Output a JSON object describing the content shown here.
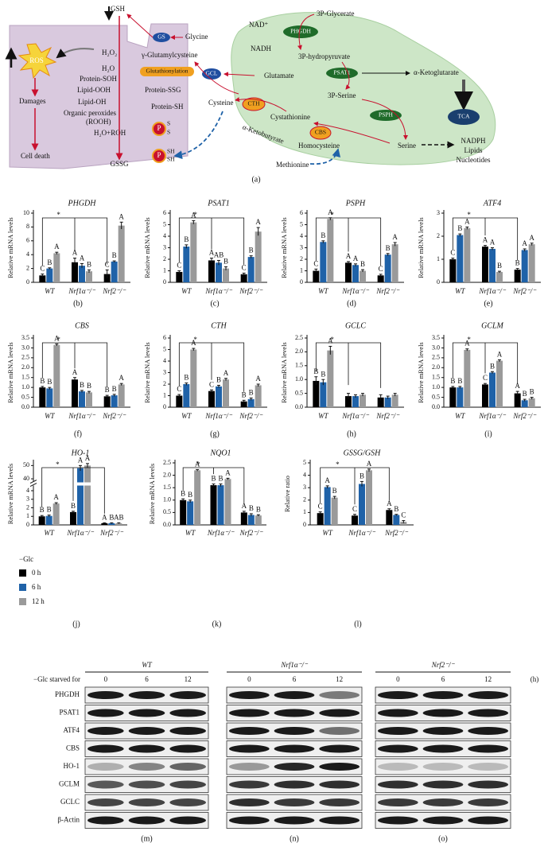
{
  "diagram": {
    "caption": "(a)",
    "gsh": "GSH",
    "gs": "GS",
    "glycine": "Glycine",
    "gglu": "γ-Glutamylcysteine",
    "h2o2": "H₂O₂",
    "h2o": "H₂O",
    "ros": "ROS",
    "glut": "Glutathionylation",
    "psoh": "Protein-SOH",
    "looh": "Lipid-OOH",
    "pssg": "Protein-SSG",
    "loh": "Lipid-OH",
    "psh": "Protein-SH",
    "orgp": "Organic peroxides",
    "rooh": "(ROOH)",
    "h2oroh": "H₂O+ROH",
    "damages": "Damages",
    "death": "Cell death",
    "gssg": "GSSG",
    "p": "P",
    "s": "S",
    "sh": "SH",
    "gcl": "GCL",
    "glutamate": "Glutamate",
    "cysteine": "Cysteine",
    "cth": "CTH",
    "cysta": "Cystathionine",
    "akb": "α-Ketobutyrate",
    "cbs": "CBS",
    "homocys": "Homocysteine",
    "methionine": "Methionine",
    "nad": "NAD⁺",
    "nadh": "NADH",
    "phgdh": "PHGDH",
    "p3g": "3P-Glycerate",
    "p3h": "3P-hydropyruvate",
    "psat1": "PSAT1",
    "p3s": "3P-Serine",
    "psph": "PSPH",
    "serine": "Serine",
    "akg": "α-Ketoglutarate",
    "tca": "TCA",
    "nadph": "NADPH",
    "lipids": "Lipids",
    "nucl": "Nucleotides"
  },
  "legend": {
    "title": "−Glc",
    "series": [
      {
        "name": "0 h",
        "color": "#000000"
      },
      {
        "name": "6 h",
        "color": "#1f62a8"
      },
      {
        "name": "12 h",
        "color": "#9a9a9a"
      }
    ]
  },
  "chart_data": [
    {
      "type": "bar",
      "title": "PHGDH",
      "ylabel": "Relative mRNA levels",
      "panel": "(b)",
      "annotation": "*",
      "categories": [
        "WT",
        "Nrf1α⁻/⁻",
        "Nrf2⁻/⁻"
      ],
      "ylim": [
        0,
        10
      ],
      "yticks": [
        0,
        2,
        4,
        6,
        8,
        10
      ],
      "series": [
        {
          "values": [
            1.0,
            2.9,
            1.2
          ],
          "errors": [
            0.2,
            0.6,
            0.6
          ],
          "letters": [
            "C",
            "A",
            "C"
          ]
        },
        {
          "values": [
            2.0,
            2.4,
            3.0
          ],
          "errors": [
            0.1,
            0.3,
            0.1
          ],
          "letters": [
            "B",
            "A",
            "B"
          ]
        },
        {
          "values": [
            4.2,
            1.6,
            8.2
          ],
          "errors": [
            0.15,
            0.2,
            0.5
          ],
          "letters": [
            "A",
            "B",
            "A"
          ]
        }
      ]
    },
    {
      "type": "bar",
      "title": "PSAT1",
      "ylabel": "Relative mRNA levels",
      "panel": "(c)",
      "annotation": "*",
      "categories": [
        "WT",
        "Nrf1α⁻/⁻",
        "Nrf2⁻/⁻"
      ],
      "ylim": [
        0,
        6
      ],
      "yticks": [
        0,
        1,
        2,
        3,
        4,
        5,
        6
      ],
      "series": [
        {
          "values": [
            0.9,
            1.9,
            0.7
          ],
          "errors": [
            0.1,
            0.2,
            0.1
          ],
          "letters": [
            "C",
            "A",
            "C"
          ]
        },
        {
          "values": [
            3.1,
            1.7,
            2.2
          ],
          "errors": [
            0.15,
            0.2,
            0.1
          ],
          "letters": [
            "B",
            "AB",
            "B"
          ]
        },
        {
          "values": [
            5.2,
            1.2,
            4.4
          ],
          "errors": [
            0.15,
            0.15,
            0.35
          ],
          "letters": [
            "A",
            "B",
            "A"
          ]
        }
      ]
    },
    {
      "type": "bar",
      "title": "PSPH",
      "ylabel": "Relative mRNA levels",
      "panel": "(d)",
      "annotation": "*",
      "categories": [
        "WT",
        "Nrf1α⁻/⁻",
        "Nrf2⁻/⁻"
      ],
      "ylim": [
        0,
        6
      ],
      "yticks": [
        0,
        1,
        2,
        3,
        4,
        5,
        6
      ],
      "series": [
        {
          "values": [
            1.0,
            1.7,
            0.6
          ],
          "errors": [
            0.15,
            0.1,
            0.1
          ],
          "letters": [
            "C",
            "A",
            "C"
          ]
        },
        {
          "values": [
            3.5,
            1.5,
            2.4
          ],
          "errors": [
            0.1,
            0.1,
            0.1
          ],
          "letters": [
            "B",
            "A",
            "B"
          ]
        },
        {
          "values": [
            5.5,
            1.0,
            3.3
          ],
          "errors": [
            0.1,
            0.1,
            0.15
          ],
          "letters": [
            "A",
            "B",
            "A"
          ]
        }
      ]
    },
    {
      "type": "bar",
      "title": "ATF4",
      "ylabel": "Relative mRNA levels",
      "panel": "(e)",
      "annotation": "*",
      "categories": [
        "WT",
        "Nrf1α⁻/⁻",
        "Nrf2⁻/⁻"
      ],
      "ylim": [
        0,
        3
      ],
      "yticks": [
        0,
        1,
        2,
        3
      ],
      "series": [
        {
          "values": [
            1.0,
            1.55,
            0.55
          ],
          "errors": [
            0.05,
            0.05,
            0.05
          ],
          "letters": [
            "C",
            "A",
            "B"
          ]
        },
        {
          "values": [
            2.05,
            1.45,
            1.4
          ],
          "errors": [
            0.05,
            0.05,
            0.05
          ],
          "letters": [
            "B",
            "A",
            "A"
          ]
        },
        {
          "values": [
            2.35,
            0.45,
            1.65
          ],
          "errors": [
            0.05,
            0.03,
            0.05
          ],
          "letters": [
            "A",
            "B",
            "A"
          ]
        }
      ]
    },
    {
      "type": "bar",
      "title": "CBS",
      "ylabel": "Relative mRNA levels",
      "panel": "(f)",
      "annotation": "*",
      "categories": [
        "WT",
        "Nrf1α⁻/⁻",
        "Nrf2⁻/⁻"
      ],
      "ylim": [
        0,
        3.5
      ],
      "yticks": [
        {
          "value": 0,
          "label": "0.0"
        },
        0.5,
        {
          "value": 1,
          "label": "1.0"
        },
        1.5,
        {
          "value": 2,
          "label": "2.0"
        },
        2.5,
        {
          "value": 3,
          "label": "3.0"
        },
        3.5
      ],
      "series": [
        {
          "values": [
            1.0,
            1.4,
            0.55
          ],
          "errors": [
            0.05,
            0.1,
            0.05
          ],
          "letters": [
            "B",
            "A",
            "B"
          ]
        },
        {
          "values": [
            0.95,
            0.8,
            0.6
          ],
          "errors": [
            0.05,
            0.05,
            0.05
          ],
          "letters": [
            "B",
            "B",
            "B"
          ]
        },
        {
          "values": [
            3.15,
            0.75,
            1.15
          ],
          "errors": [
            0.05,
            0.05,
            0.05
          ],
          "letters": [
            "A",
            "B",
            "A"
          ]
        }
      ]
    },
    {
      "type": "bar",
      "title": "CTH",
      "ylabel": "Relative mRNA levels",
      "panel": "(g)",
      "annotation": "*",
      "categories": [
        "WT",
        "Nrf1α⁻/⁻",
        "Nrf2⁻/⁻"
      ],
      "ylim": [
        0,
        6
      ],
      "yticks": [
        0,
        1,
        2,
        3,
        4,
        5,
        6
      ],
      "series": [
        {
          "values": [
            1.0,
            1.4,
            0.5
          ],
          "errors": [
            0.1,
            0.1,
            0.1
          ],
          "letters": [
            "C",
            "C",
            "B"
          ]
        },
        {
          "values": [
            2.0,
            1.8,
            0.7
          ],
          "errors": [
            0.1,
            0.1,
            0.1
          ],
          "letters": [
            "B",
            "B",
            "B"
          ]
        },
        {
          "values": [
            5.0,
            2.4,
            1.9
          ],
          "errors": [
            0.1,
            0.1,
            0.1
          ],
          "letters": [
            "A",
            "A",
            "A"
          ]
        }
      ]
    },
    {
      "type": "bar",
      "title": "GCLC",
      "ylabel": "Relative mRNA levels",
      "panel": "(h)",
      "annotation": "*",
      "categories": [
        "WT",
        "Nrf1α⁻/⁻",
        "Nrf2⁻/⁻"
      ],
      "ylim": [
        0,
        2.5
      ],
      "yticks": [
        {
          "value": 0,
          "label": "0.0"
        },
        0.5,
        {
          "value": 1,
          "label": "1.0"
        },
        1.5,
        {
          "value": 2,
          "label": "2.0"
        },
        2.5
      ],
      "series": [
        {
          "values": [
            0.95,
            0.4,
            0.35
          ],
          "errors": [
            0.15,
            0.1,
            0.1
          ],
          "letters": [
            "B",
            null,
            null
          ]
        },
        {
          "values": [
            0.9,
            0.4,
            0.35
          ],
          "errors": [
            0.1,
            0.05,
            0.05
          ],
          "letters": [
            "B",
            null,
            null
          ]
        },
        {
          "values": [
            2.05,
            0.45,
            0.45
          ],
          "errors": [
            0.15,
            0.05,
            0.05
          ],
          "letters": [
            "A",
            null,
            null
          ]
        }
      ]
    },
    {
      "type": "bar",
      "title": "GCLM",
      "ylabel": "Relative mRNA levels",
      "panel": "(i)",
      "annotation": "*",
      "categories": [
        "WT",
        "Nrf1α⁻/⁻",
        "Nrf2⁻/⁻"
      ],
      "ylim": [
        0,
        3.5
      ],
      "yticks": [
        {
          "value": 0,
          "label": "0.0"
        },
        0.5,
        {
          "value": 1,
          "label": "1.0"
        },
        1.5,
        {
          "value": 2,
          "label": "2.0"
        },
        2.5,
        {
          "value": 3,
          "label": "3.0"
        },
        3.5
      ],
      "series": [
        {
          "values": [
            1.0,
            1.15,
            0.7
          ],
          "errors": [
            0.05,
            0.05,
            0.1
          ],
          "letters": [
            "B",
            "C",
            "A"
          ]
        },
        {
          "values": [
            1.0,
            1.75,
            0.35
          ],
          "errors": [
            0.05,
            0.05,
            0.05
          ],
          "letters": [
            "B",
            "B",
            "B"
          ]
        },
        {
          "values": [
            2.9,
            2.35,
            0.45
          ],
          "errors": [
            0.05,
            0.05,
            0.05
          ],
          "letters": [
            "A",
            "A",
            "B"
          ]
        }
      ]
    },
    {
      "type": "bar",
      "title": "HO-1",
      "ylabel": "Relative mRNA levels",
      "panel": "(j)",
      "annotation": "*",
      "categories": [
        "WT",
        "Nrf1α⁻/⁻",
        "Nrf2⁻/⁻"
      ],
      "ylim": [
        0,
        52
      ],
      "ybreak": [
        4.5,
        38
      ],
      "yticks": [
        0,
        1,
        2,
        3,
        4,
        40,
        50
      ],
      "series": [
        {
          "values": [
            1.0,
            1.5,
            0.2
          ],
          "errors": [
            0.1,
            0.1,
            0.05
          ],
          "letters": [
            "B",
            "B",
            "A"
          ]
        },
        {
          "values": [
            1.05,
            48,
            0.2
          ],
          "errors": [
            0.1,
            2,
            0.05
          ],
          "letters": [
            "B",
            "A",
            "B"
          ]
        },
        {
          "values": [
            2.5,
            50,
            0.2
          ],
          "errors": [
            0.1,
            1.5,
            0.05
          ],
          "letters": [
            "A",
            "A",
            "AB"
          ]
        }
      ]
    },
    {
      "type": "bar",
      "title": "NQO1",
      "ylabel": "Relative mRNA levels",
      "panel": "(k)",
      "annotation": "*",
      "categories": [
        "WT",
        "Nrf1α⁻/⁻",
        "Nrf2⁻/⁻"
      ],
      "ylim": [
        0,
        2.5
      ],
      "yticks": [
        {
          "value": 0,
          "label": "0.0"
        },
        0.5,
        {
          "value": 1,
          "label": "1.0"
        },
        1.5,
        {
          "value": 2,
          "label": "2.0"
        },
        2.5
      ],
      "series": [
        {
          "values": [
            1.0,
            1.6,
            0.5
          ],
          "errors": [
            0.05,
            0.05,
            0.05
          ],
          "letters": [
            "B",
            "B",
            "A"
          ]
        },
        {
          "values": [
            0.95,
            1.6,
            0.4
          ],
          "errors": [
            0.05,
            0.05,
            0.05
          ],
          "letters": [
            "B",
            "B",
            "B"
          ]
        },
        {
          "values": [
            2.2,
            1.85,
            0.38
          ],
          "errors": [
            0.03,
            0.03,
            0.03
          ],
          "letters": [
            "A",
            "A",
            "B"
          ]
        }
      ]
    },
    {
      "type": "bar",
      "title": "GSSG/GSH",
      "ylabel": "Relative ratio",
      "panel": "(l)",
      "annotation": "*",
      "categories": [
        "WT",
        "Nrf1α⁻/⁻",
        "Nrf2⁻/⁻"
      ],
      "ylim": [
        0,
        5
      ],
      "yticks": [
        0,
        1,
        2,
        3,
        4,
        5
      ],
      "series": [
        {
          "values": [
            0.95,
            0.75,
            1.2
          ],
          "errors": [
            0.1,
            0.1,
            0.1
          ],
          "letters": [
            "C",
            "C",
            "A"
          ]
        },
        {
          "values": [
            3.05,
            3.3,
            0.8
          ],
          "errors": [
            0.1,
            0.2,
            0.05
          ],
          "letters": [
            "A",
            "B",
            "B"
          ]
        },
        {
          "values": [
            2.2,
            4.4,
            0.25
          ],
          "errors": [
            0.1,
            0.1,
            0.1
          ],
          "letters": [
            "B",
            "A",
            "C"
          ]
        }
      ]
    }
  ],
  "blots": {
    "row_header": "−Glc starved for",
    "unit": "(h)",
    "times": [
      0,
      6,
      12
    ],
    "groups": [
      "WT",
      "Nrf1α⁻/⁻",
      "Nrf2⁻/⁻"
    ],
    "rows": [
      "PHGDH",
      "PSAT1",
      "ATF4",
      "CBS",
      "HO-1",
      "GCLM",
      "GCLC",
      "β-Actin"
    ],
    "panels": [
      "(m)",
      "(n)",
      "(o)"
    ]
  }
}
